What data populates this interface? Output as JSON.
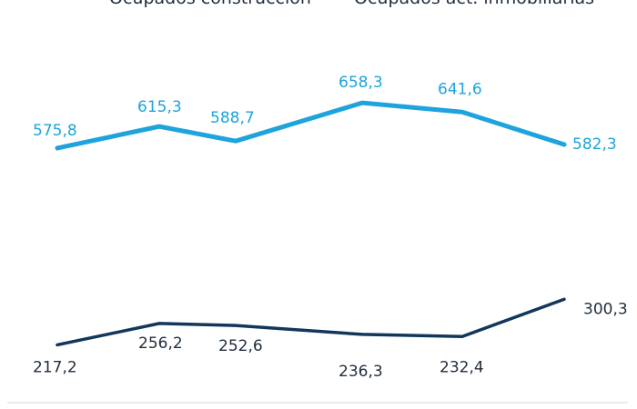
{
  "chart_data": {
    "type": "line",
    "title": "",
    "xlabel": "",
    "ylabel": "",
    "categories": [
      "",
      "",
      "",
      "",
      "",
      ""
    ],
    "ylim": [
      150,
      700
    ],
    "legend_position": "top",
    "grid": false,
    "series": [
      {
        "name": "Ocupados construcción",
        "color": "#12375a",
        "values": [
          217.2,
          256.2,
          252.6,
          236.3,
          232.4,
          300.3
        ],
        "labels": [
          "217,2",
          "256,2",
          "252,6",
          "236,3",
          "232,4",
          "300,3"
        ]
      },
      {
        "name": "Ocupados act. inmobiliarias",
        "color": "#1ea3dc",
        "values": [
          575.8,
          615.3,
          588.7,
          658.3,
          641.6,
          582.3
        ],
        "labels": [
          "575,8",
          "615,3",
          "588,7",
          "658,3",
          "641,6",
          "582,3"
        ]
      }
    ]
  }
}
